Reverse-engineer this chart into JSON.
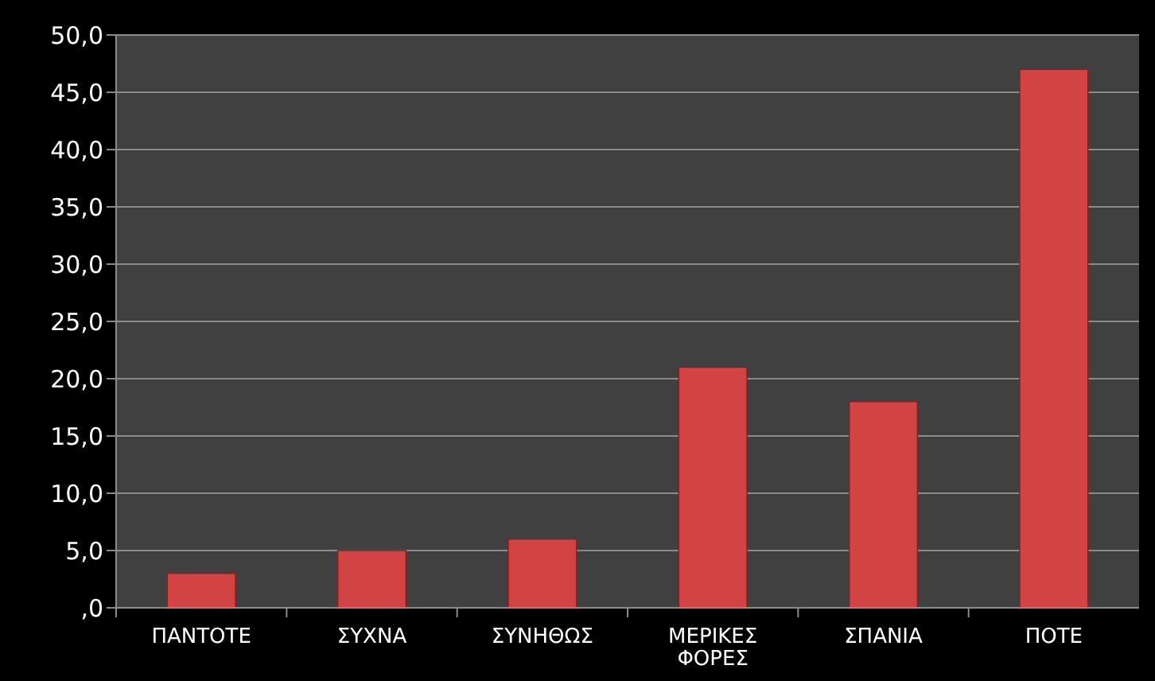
{
  "chart_data": {
    "type": "bar",
    "categories": [
      "ΠΑΝΤΟΤΕ",
      "ΣΥΧΝΑ",
      "ΣΥΝΗΘΩΣ",
      "ΜΕΡΙΚΕΣ ΦΟΡΕΣ",
      "ΣΠΑΝΙΑ",
      "ΠΟΤΕ"
    ],
    "values": [
      3,
      5,
      6,
      21,
      18,
      47
    ],
    "color": "#d24444",
    "ylim": [
      0,
      50
    ],
    "yticks": [
      {
        "value": 0,
        "label": ",0"
      },
      {
        "value": 5,
        "label": "5,0"
      },
      {
        "value": 10,
        "label": "10,0"
      },
      {
        "value": 15,
        "label": "15,0"
      },
      {
        "value": 20,
        "label": "20,0"
      },
      {
        "value": 25,
        "label": "25,0"
      },
      {
        "value": 30,
        "label": "30,0"
      },
      {
        "value": 35,
        "label": "35,0"
      },
      {
        "value": 40,
        "label": "40,0"
      },
      {
        "value": 45,
        "label": "45,0"
      },
      {
        "value": 50,
        "label": "50,0"
      }
    ],
    "grid": "y"
  }
}
